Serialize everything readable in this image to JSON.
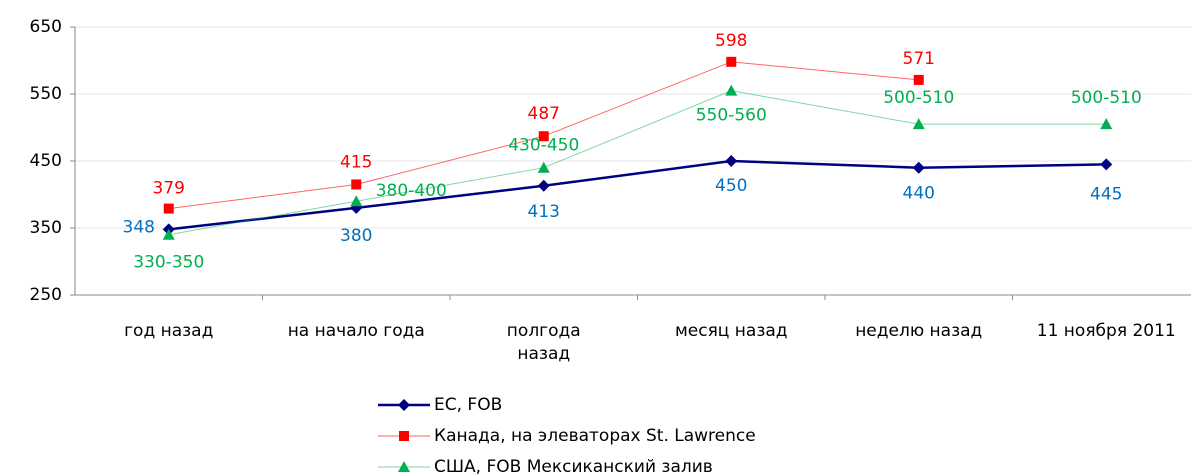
{
  "chart_data": {
    "type": "line",
    "categories": [
      "год назад",
      "на начало года",
      "полгода назад",
      "месяц назад",
      "неделю назад",
      "11 ноября 2011"
    ],
    "series": [
      {
        "name": "ЕС, FOB",
        "color": "#000080",
        "values": [
          348,
          380,
          413,
          450,
          440,
          445
        ]
      },
      {
        "name": "Канада, на элеваторах St. Lawrence",
        "color": "#ff0000",
        "values": [
          379,
          415,
          487,
          598,
          571,
          null
        ]
      },
      {
        "name": "США, FOB Мексиканский залив",
        "color": "#00b050",
        "values": [
          340,
          390,
          440,
          555,
          505,
          505
        ],
        "value_labels": [
          "330-350",
          "380-400",
          "430-450",
          "550-560",
          "500-510",
          "500-510"
        ]
      }
    ],
    "ylim": [
      250,
      650
    ],
    "yticks": [
      250,
      350,
      450,
      550,
      650
    ],
    "grid": true
  }
}
